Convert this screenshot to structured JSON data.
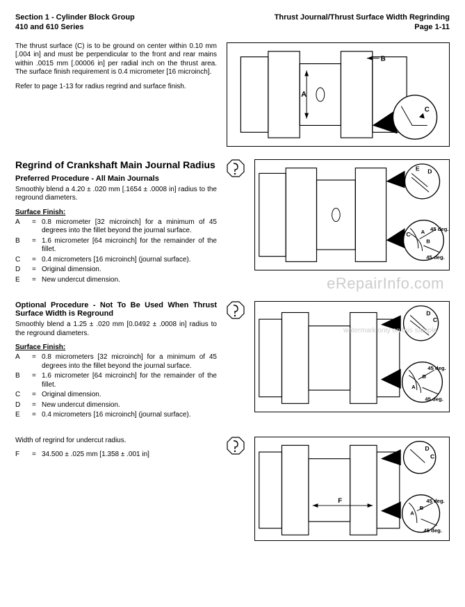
{
  "header": {
    "left1": "Section 1 - Cylinder Block Group",
    "left2": "410 and 610 Series",
    "right1": "Thrust Journal/Thrust Surface Width Regrinding",
    "right2": "Page 1-11"
  },
  "block1": {
    "p1": "The thrust surface (C) is to be ground on center within 0.10 mm [.004 in] and must be perpendicular to the front and rear mains within .0015 mm [.00006 in] per radial inch on the thrust area. The surface finish requirement is 0.4 micrometer [16 microinch].",
    "p2": "Refer to page 1-13 for radius regrind and surface finish."
  },
  "block2": {
    "title": "Regrind of Crankshaft Main Journal Radius",
    "subtitle": "Preferred Procedure - All Main Journals",
    "p1": "Smoothly blend a 4.20 ± .020 mm [.1654 ± .0008 in] radius to the reground diameters.",
    "surfaceFinish": "Surface Finish:",
    "defs": [
      {
        "k": "A",
        "v": "0.8 micrometer [32 microinch] for a minimum of 45 degrees into the fillet beyond the journal surface."
      },
      {
        "k": "B",
        "v": "1.6 micrometer [64 microinch] for the remainder of the fillet."
      },
      {
        "k": "C",
        "v": "0.4 micrometers [16 microinch] (journal surface)."
      },
      {
        "k": "D",
        "v": "Original dimension."
      },
      {
        "k": "E",
        "v": "New undercut dimension."
      }
    ]
  },
  "block3": {
    "title": "Optional Procedure - Not To Be Used When Thrust Surface Width is Reground",
    "p1": "Smoothly blend a 1.25 ± .020 mm [0.0492 ± .0008 in] radius to the reground diameters.",
    "surfaceFinish": "Surface Finish:",
    "defs": [
      {
        "k": "A",
        "v": "0.8 micrometers [32 microinch] for a minimum of 45 degrees into the fillet beyond the journal surface."
      },
      {
        "k": "B",
        "v": "1.6 micrometer [64 microinch] for the remainder of the fillet."
      },
      {
        "k": "C",
        "v": "Original dimension."
      },
      {
        "k": "D",
        "v": "New undercut dimension."
      },
      {
        "k": "E",
        "v": "0.4 micrometers [16 microinch] (journal surface)."
      }
    ]
  },
  "block4": {
    "p1": "Width of regrind for undercut radius.",
    "def": {
      "k": "F",
      "v": "34.500 ± .025 mm [1.358 ± .001 in]"
    }
  },
  "labels": {
    "A": "A",
    "B": "B",
    "C": "C",
    "D": "D",
    "E": "E",
    "F": "F",
    "deg45": "45 deg.",
    "deg45b": "45 deg."
  },
  "watermark": {
    "line1": "eRepairInfo.com",
    "line2": "watermark only on this sample"
  },
  "style": {
    "stroke": "#000000",
    "fill": "#ffffff",
    "thin": 1,
    "thick": 1.6,
    "font": "Arial",
    "callout_font": 10
  }
}
